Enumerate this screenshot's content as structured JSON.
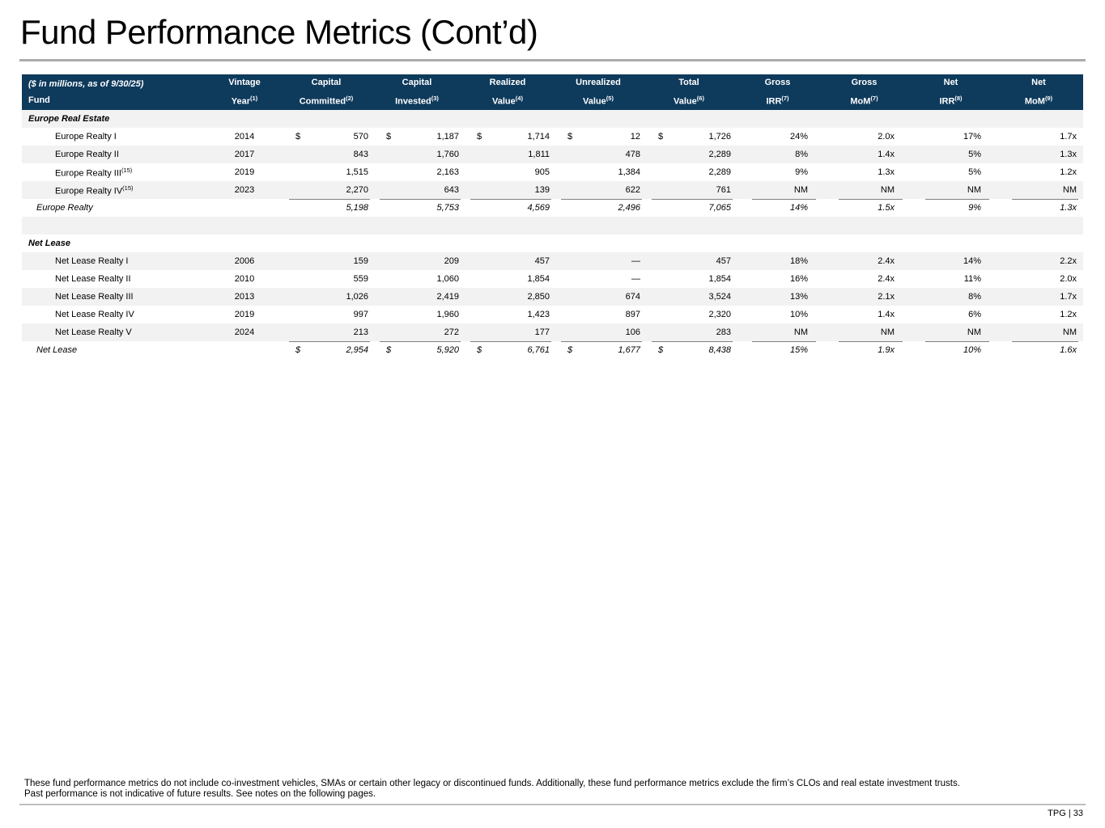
{
  "page": {
    "title": "Fund Performance Metrics (Cont’d)",
    "footnote_line1": "These fund performance metrics do not include co-investment vehicles, SMAs or certain other legacy or discontinued funds. Additionally, these fund performance metrics exclude the firm’s CLOs and real estate investment trusts.",
    "footnote_line2": "Past performance is not indicative of future results. See notes on the following pages.",
    "page_label": "TPG | 33"
  },
  "colors": {
    "header_bg": "#0E3A5C",
    "header_text": "#FFFFFF",
    "row_stripe": "#F2F2F2",
    "total_overline": "#808080",
    "divider": "#BFBFBF"
  },
  "table": {
    "caption": {
      "line1": "($ in millions, as of 9/30/25)",
      "line2": "Fund"
    },
    "columns": [
      {
        "line1": "Vintage",
        "line2": "Year",
        "sup": "(1)",
        "type": "vintage"
      },
      {
        "line1": "Capital",
        "line2": "Committed",
        "sup": "(2)",
        "type": "money"
      },
      {
        "line1": "Capital",
        "line2": "Invested",
        "sup": "(3)",
        "type": "money"
      },
      {
        "line1": "Realized",
        "line2": "Value",
        "sup": "(4)",
        "type": "money"
      },
      {
        "line1": "Unrealized",
        "line2": "Value",
        "sup": "(5)",
        "type": "money"
      },
      {
        "line1": "Total",
        "line2": "Value",
        "sup": "(6)",
        "type": "money"
      },
      {
        "line1": "Gross",
        "line2": "IRR",
        "sup": "(7)",
        "type": "ratio"
      },
      {
        "line1": "Gross",
        "line2": "MoM",
        "sup": "(7)",
        "type": "ratio"
      },
      {
        "line1": "Net",
        "line2": "IRR",
        "sup": "(8)",
        "type": "ratio"
      },
      {
        "line1": "Net",
        "line2": "MoM",
        "sup": "(9)",
        "type": "ratio"
      }
    ],
    "rows": [
      {
        "type": "section",
        "label": "Europe Real Estate"
      },
      {
        "type": "fund",
        "label": "Europe Realty I",
        "sup": "",
        "vintage": "2014",
        "dollar": true,
        "values": [
          "570",
          "1,187",
          "1,714",
          "12",
          "1,726",
          "24%",
          "2.0x",
          "17%",
          "1.7x"
        ]
      },
      {
        "type": "fund",
        "label": "Europe Realty II",
        "sup": "",
        "vintage": "2017",
        "dollar": false,
        "values": [
          "843",
          "1,760",
          "1,811",
          "478",
          "2,289",
          "8%",
          "1.4x",
          "5%",
          "1.3x"
        ]
      },
      {
        "type": "fund",
        "label": "Europe Realty III",
        "sup": "(15)",
        "vintage": "2019",
        "dollar": false,
        "values": [
          "1,515",
          "2,163",
          "905",
          "1,384",
          "2,289",
          "9%",
          "1.3x",
          "5%",
          "1.2x"
        ]
      },
      {
        "type": "fund",
        "label": "Europe Realty IV",
        "sup": "(15)",
        "vintage": "2023",
        "dollar": false,
        "values": [
          "2,270",
          "643",
          "139",
          "622",
          "761",
          "NM",
          "NM",
          "NM",
          "NM"
        ]
      },
      {
        "type": "total",
        "label": "Europe Realty",
        "sup": "",
        "vintage": "",
        "dollar": false,
        "values": [
          "5,198",
          "5,753",
          "4,569",
          "2,496",
          "7,065",
          "14%",
          "1.5x",
          "9%",
          "1.3x"
        ]
      },
      {
        "type": "spacer"
      },
      {
        "type": "section",
        "label": "Net Lease"
      },
      {
        "type": "fund",
        "label": "Net Lease Realty I",
        "sup": "",
        "vintage": "2006",
        "dollar": false,
        "values": [
          "159",
          "209",
          "457",
          "—",
          "457",
          "18%",
          "2.4x",
          "14%",
          "2.2x"
        ]
      },
      {
        "type": "fund",
        "label": "Net Lease Realty II",
        "sup": "",
        "vintage": "2010",
        "dollar": false,
        "values": [
          "559",
          "1,060",
          "1,854",
          "—",
          "1,854",
          "16%",
          "2.4x",
          "11%",
          "2.0x"
        ]
      },
      {
        "type": "fund",
        "label": "Net Lease Realty III",
        "sup": "",
        "vintage": "2013",
        "dollar": false,
        "values": [
          "1,026",
          "2,419",
          "2,850",
          "674",
          "3,524",
          "13%",
          "2.1x",
          "8%",
          "1.7x"
        ]
      },
      {
        "type": "fund",
        "label": "Net Lease Realty IV",
        "sup": "",
        "vintage": "2019",
        "dollar": false,
        "values": [
          "997",
          "1,960",
          "1,423",
          "897",
          "2,320",
          "10%",
          "1.4x",
          "6%",
          "1.2x"
        ]
      },
      {
        "type": "fund",
        "label": "Net Lease Realty V",
        "sup": "",
        "vintage": "2024",
        "dollar": false,
        "values": [
          "213",
          "272",
          "177",
          "106",
          "283",
          "NM",
          "NM",
          "NM",
          "NM"
        ]
      },
      {
        "type": "total",
        "label": "Net Lease",
        "sup": "",
        "vintage": "",
        "dollar": true,
        "values": [
          "2,954",
          "5,920",
          "6,761",
          "1,677",
          "8,438",
          "15%",
          "1.9x",
          "10%",
          "1.6x"
        ]
      }
    ]
  }
}
